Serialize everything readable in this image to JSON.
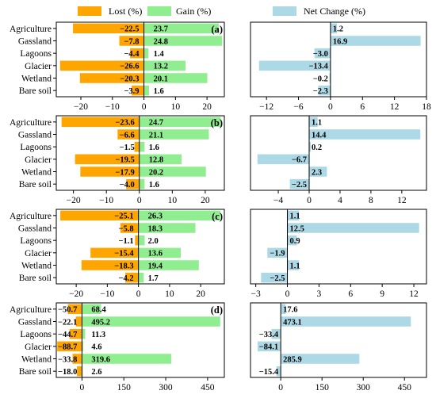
{
  "legend": [
    {
      "label": "Lost (%)",
      "color": "#FFA500"
    },
    {
      "label": "Gain (%)",
      "color": "#90EE90"
    },
    {
      "label": "Net Change (%)",
      "color": "#ADD8E6"
    }
  ],
  "chart_data": [
    {
      "panel": "(a)",
      "type": "bar",
      "orientation": "horizontal",
      "categories": [
        "Agriculture",
        "Gassland",
        "Lagoons",
        "Glacier",
        "Wetland",
        "Bare soil"
      ],
      "left": {
        "series": [
          {
            "name": "Lost (%)",
            "color": "#FFA500",
            "values": [
              -22.5,
              -7.8,
              -4.4,
              -26.6,
              -20.3,
              -3.9
            ],
            "labels": [
              "−22.5",
              "−7.8",
              "−4.4",
              "−26.6",
              "−20.3",
              "−3.9"
            ]
          },
          {
            "name": "Gain (%)",
            "color": "#90EE90",
            "values": [
              23.7,
              24.8,
              1.4,
              13.2,
              20.1,
              1.6
            ],
            "labels": [
              "23.7",
              "24.8",
              "1.4",
              "13.2",
              "20.1",
              "1.6"
            ]
          }
        ],
        "xlim": [
          -27.8,
          25.5
        ],
        "xticks": [
          -20,
          -10,
          0,
          10,
          20
        ],
        "xticklabels": [
          "−20",
          "−10",
          "0",
          "10",
          "20"
        ]
      },
      "right": {
        "series": [
          {
            "name": "Net Change (%)",
            "color": "#ADD8E6",
            "values": [
              1.2,
              16.9,
              -3.0,
              -13.4,
              -0.2,
              -2.3
            ],
            "labels": [
              "1.2",
              "16.9",
              "−3.0",
              "−13.4",
              "−0.2",
              "−2.3"
            ]
          }
        ],
        "xlim": [
          -15.0,
          18.0
        ],
        "xticks": [
          -12,
          -6,
          0,
          6,
          12,
          18
        ],
        "xticklabels": [
          "−12",
          "−6",
          "0",
          "6",
          "12",
          "18"
        ]
      }
    },
    {
      "panel": "(b)",
      "type": "bar",
      "orientation": "horizontal",
      "categories": [
        "Agriculture",
        "Gassland",
        "Lagoons",
        "Glacier",
        "Wetland",
        "Bare soil"
      ],
      "left": {
        "series": [
          {
            "name": "Lost (%)",
            "color": "#FFA500",
            "values": [
              -23.6,
              -6.6,
              -1.5,
              -19.5,
              -17.9,
              -4.0
            ],
            "labels": [
              "−23.6",
              "−6.6",
              "−1.5",
              "−19.5",
              "−17.9",
              "−4.0"
            ]
          },
          {
            "name": "Gain (%)",
            "color": "#90EE90",
            "values": [
              24.7,
              21.1,
              1.6,
              12.8,
              20.2,
              1.6
            ],
            "labels": [
              "24.7",
              "21.1",
              "1.6",
              "12.8",
              "20.2",
              "1.6"
            ]
          }
        ],
        "xlim": [
          -25.2,
          25.8
        ],
        "xticks": [
          -20,
          -10,
          0,
          10,
          20
        ],
        "xticklabels": [
          "−20",
          "−10",
          "0",
          "10",
          "20"
        ]
      },
      "right": {
        "series": [
          {
            "name": "Net Change (%)",
            "color": "#ADD8E6",
            "values": [
              1.1,
              14.4,
              0.2,
              -6.7,
              2.3,
              -2.5
            ],
            "labels": [
              "1.1",
              "14.4",
              "0.2",
              "−6.7",
              "2.3",
              "−2.5"
            ]
          }
        ],
        "xlim": [
          -7.6,
          15.2
        ],
        "xticks": [
          -4,
          0,
          4,
          8,
          12
        ],
        "xticklabels": [
          "−4",
          "0",
          "4",
          "8",
          "12"
        ]
      }
    },
    {
      "panel": "(c)",
      "type": "bar",
      "orientation": "horizontal",
      "categories": [
        "Agriculture",
        "Gassland",
        "Lagoons",
        "Glacier",
        "Wetland",
        "Bare soil"
      ],
      "left": {
        "series": [
          {
            "name": "Lost (%)",
            "color": "#FFA500",
            "values": [
              -25.1,
              -5.8,
              -1.1,
              -15.4,
              -18.3,
              -4.2
            ],
            "labels": [
              "−25.1",
              "−5.8",
              "−1.1",
              "−15.4",
              "−18.3",
              "−4.2"
            ]
          },
          {
            "name": "Gain (%)",
            "color": "#90EE90",
            "values": [
              26.3,
              18.3,
              2.0,
              13.6,
              19.4,
              1.7
            ],
            "labels": [
              "26.3",
              "18.3",
              "2.0",
              "13.6",
              "19.4",
              "1.7"
            ]
          }
        ],
        "xlim": [
          -26.4,
          27.6
        ],
        "xticks": [
          -20,
          -10,
          0,
          10,
          20
        ],
        "xticklabels": [
          "−20",
          "−10",
          "0",
          "10",
          "20"
        ]
      },
      "right": {
        "series": [
          {
            "name": "Net Change (%)",
            "color": "#ADD8E6",
            "values": [
              1.1,
              12.5,
              0.9,
              -1.9,
              1.1,
              -2.5
            ],
            "labels": [
              "1.1",
              "12.5",
              "0.9",
              "−1.9",
              "1.1",
              "−2.5"
            ]
          }
        ],
        "xlim": [
          -3.5,
          13.2
        ],
        "xticks": [
          -3,
          0,
          3,
          6,
          9,
          12
        ],
        "xticklabels": [
          "−3",
          "0",
          "3",
          "6",
          "9",
          "12"
        ]
      }
    },
    {
      "panel": "(d)",
      "type": "bar",
      "orientation": "horizontal",
      "categories": [
        "Agriculture",
        "Gassland",
        "Lagoons",
        "Glacier",
        "Wetland",
        "Bare soil"
      ],
      "left": {
        "series": [
          {
            "name": "Lost (%)",
            "color": "#FFA500",
            "values": [
              -50.7,
              -22.1,
              -44.7,
              -88.7,
              -33.8,
              -18.0
            ],
            "labels": [
              "−50.7",
              "−22.1",
              "−44.7",
              "−88.7",
              "−33.8",
              "−18.0"
            ]
          },
          {
            "name": "Gain (%)",
            "color": "#90EE90",
            "values": [
              68.4,
              495.2,
              11.3,
              4.6,
              319.6,
              2.6
            ],
            "labels": [
              "68.4",
              "495.2",
              "11.3",
              "4.6",
              "319.6",
              "2.6"
            ]
          }
        ],
        "xlim": [
          -92.0,
          510.0
        ],
        "xticks": [
          0,
          150,
          300,
          450
        ],
        "xticklabels": [
          "0",
          "150",
          "300",
          "450"
        ]
      },
      "right": {
        "series": [
          {
            "name": "Net Change (%)",
            "color": "#ADD8E6",
            "values": [
              17.6,
              473.1,
              -33.4,
              -84.1,
              285.9,
              -15.4
            ],
            "labels": [
              "17.6",
              "473.1",
              "−33.4",
              "−84.1",
              "285.9",
              "−15.4"
            ]
          }
        ],
        "xlim": [
          -110.0,
          530.0
        ],
        "xticks": [
          0,
          150,
          300,
          450
        ],
        "xticklabels": [
          "0",
          "150",
          "300",
          "450"
        ]
      }
    }
  ]
}
